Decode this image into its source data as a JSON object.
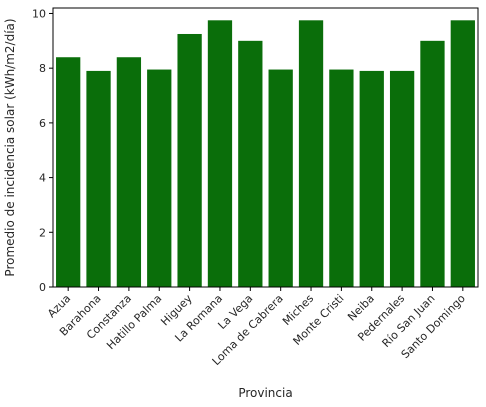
{
  "chart_data": {
    "type": "bar",
    "title": "",
    "xlabel": "Provincia",
    "ylabel": "Promedio de incidencia solar (kWh/m2/día)",
    "categories": [
      "Azua",
      "Barahona",
      "Constanza",
      "Hatillo Palma",
      "Higuey",
      "La Romana",
      "La Vega",
      "Loma de Cabrera",
      "Miches",
      "Monte Cristi",
      "Neiba",
      "Pedernales",
      "Río San Juan",
      "Santo Domingo"
    ],
    "values": [
      8.4,
      7.9,
      8.4,
      7.95,
      9.25,
      9.75,
      9.0,
      7.95,
      9.75,
      7.95,
      7.9,
      7.9,
      9.0,
      9.75
    ],
    "ylim": [
      0,
      10.2
    ],
    "yticks": [
      0,
      2,
      4,
      6,
      8,
      10
    ],
    "bar_color": "#0a6e0a",
    "grid": false,
    "legend": "none"
  }
}
